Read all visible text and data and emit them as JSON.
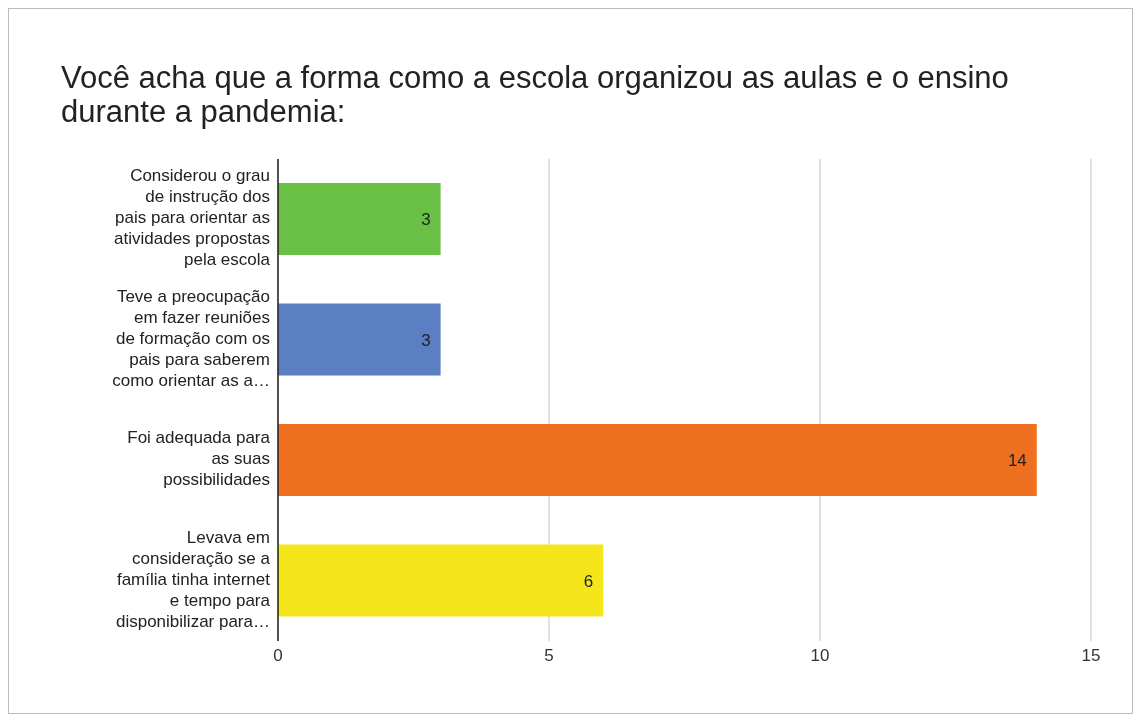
{
  "chart_data": {
    "type": "bar",
    "orientation": "horizontal",
    "title": "Você acha que a forma como a escola organizou as aulas e o ensino durante a pandemia:",
    "categories": [
      "Considerou o grau\nde instrução dos\npais para orientar as\natividades propostas\npela escola",
      "Teve a preocupação\nem fazer reuniões\nde formação com os\npais para saberem\ncomo orientar as a…",
      "Foi adequada para\nas suas\npossibilidades",
      "Levava em\nconsideração se a\nfamília tinha internet\ne tempo para\ndisponibilizar para…"
    ],
    "values": [
      3,
      3,
      14,
      6
    ],
    "colors": [
      "#6abf45",
      "#5a7fc2",
      "#f07021",
      "#f5e61b"
    ],
    "xlim": [
      0,
      15
    ],
    "xticks": [
      0,
      5,
      10,
      15
    ],
    "grid": "x",
    "data_labels": true
  }
}
